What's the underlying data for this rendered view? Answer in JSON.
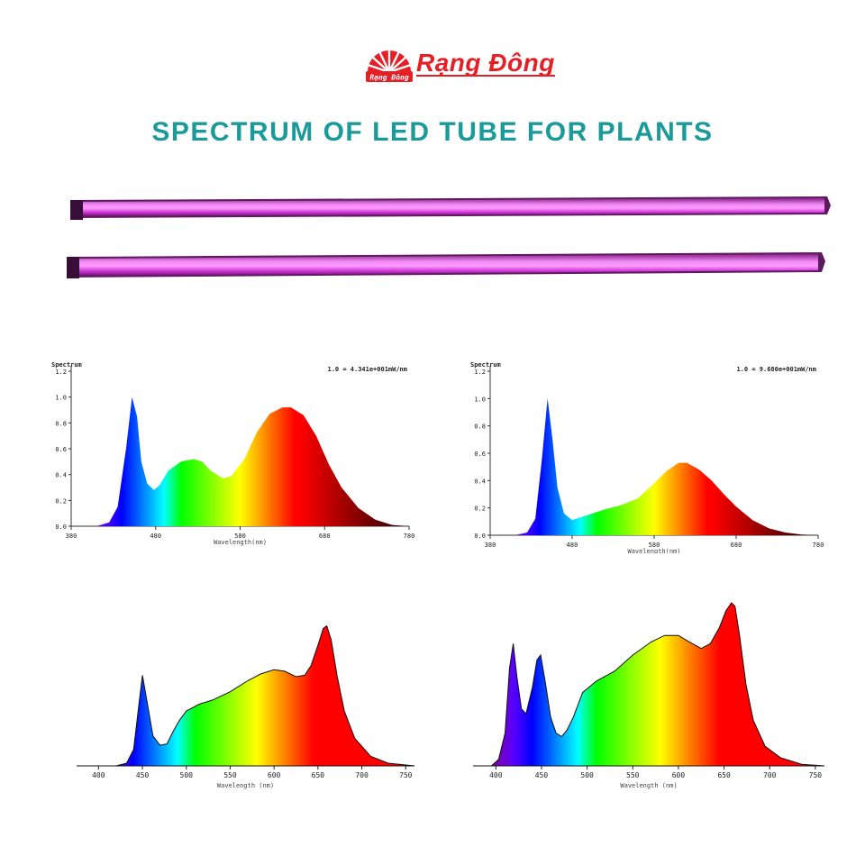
{
  "brand": {
    "name": "Rạng Đông",
    "logo_text": "Rạng Đông",
    "color": "#e41f26"
  },
  "headline": "SPECTRUM OF LED TUBE FOR PLANTS",
  "headline_color": "#1a9a9a",
  "tube_color": "#e040e8",
  "chart_data": [
    {
      "type": "area",
      "title": "Spectrum",
      "annotation": "1.0 = 4.341e+001mW/nm",
      "xlabel": "Wavelength(nm)",
      "x_ticks": [
        "380",
        "480",
        "580",
        "680",
        "780"
      ],
      "y_ticks": [
        "0.0",
        "0.2",
        "0.4",
        "0.6",
        "0.8",
        "1.0",
        "1.2"
      ],
      "xlim": [
        380,
        780
      ],
      "ylim": [
        0,
        1.2
      ],
      "x": [
        380,
        410,
        425,
        435,
        445,
        452,
        458,
        463,
        470,
        478,
        485,
        495,
        510,
        525,
        535,
        545,
        560,
        570,
        585,
        600,
        615,
        630,
        640,
        655,
        670,
        685,
        700,
        720,
        740,
        760,
        780
      ],
      "y": [
        0,
        0,
        0.03,
        0.15,
        0.6,
        1.0,
        0.85,
        0.5,
        0.33,
        0.28,
        0.32,
        0.43,
        0.5,
        0.52,
        0.5,
        0.43,
        0.37,
        0.39,
        0.52,
        0.73,
        0.87,
        0.92,
        0.92,
        0.86,
        0.7,
        0.48,
        0.3,
        0.14,
        0.05,
        0.01,
        0
      ]
    },
    {
      "type": "area",
      "title": "Spectrum",
      "annotation": "1.0 = 9.680e+001mW/nm",
      "xlabel": "Wavelength(nm)",
      "x_ticks": [
        "380",
        "480",
        "580",
        "680",
        "780"
      ],
      "y_ticks": [
        "0.0",
        "0.2",
        "0.4",
        "0.6",
        "0.8",
        "1.0",
        "1.2"
      ],
      "xlim": [
        380,
        780
      ],
      "ylim": [
        0,
        1.2
      ],
      "x": [
        380,
        410,
        425,
        435,
        443,
        450,
        456,
        462,
        470,
        480,
        490,
        505,
        520,
        540,
        560,
        580,
        595,
        610,
        620,
        635,
        650,
        665,
        680,
        700,
        720,
        740,
        760,
        780
      ],
      "y": [
        0,
        0,
        0.02,
        0.12,
        0.55,
        1.0,
        0.7,
        0.35,
        0.16,
        0.11,
        0.13,
        0.16,
        0.19,
        0.22,
        0.27,
        0.38,
        0.47,
        0.53,
        0.53,
        0.48,
        0.4,
        0.3,
        0.21,
        0.11,
        0.05,
        0.02,
        0.005,
        0
      ]
    },
    {
      "type": "area",
      "xlabel": "Wavelength (nm)",
      "x_ticks": [
        "400",
        "450",
        "500",
        "550",
        "600",
        "650",
        "700",
        "750"
      ],
      "xlim": [
        375,
        760
      ],
      "ylim": [
        0,
        1.05
      ],
      "x": [
        375,
        420,
        432,
        440,
        446,
        450,
        455,
        462,
        470,
        478,
        485,
        492,
        500,
        515,
        530,
        550,
        570,
        585,
        600,
        612,
        625,
        635,
        642,
        650,
        656,
        660,
        665,
        672,
        680,
        692,
        710,
        730,
        760
      ],
      "y": [
        0,
        0,
        0.02,
        0.12,
        0.45,
        0.66,
        0.48,
        0.22,
        0.15,
        0.16,
        0.25,
        0.33,
        0.4,
        0.45,
        0.48,
        0.54,
        0.62,
        0.67,
        0.7,
        0.69,
        0.65,
        0.66,
        0.73,
        0.88,
        1.0,
        1.02,
        0.92,
        0.65,
        0.4,
        0.2,
        0.07,
        0.02,
        0
      ]
    },
    {
      "type": "area",
      "xlabel": "Wavelength (nm)",
      "x_ticks": [
        "400",
        "450",
        "500",
        "550",
        "600",
        "650",
        "700",
        "750"
      ],
      "xlim": [
        375,
        760
      ],
      "ylim": [
        0,
        1.05
      ],
      "x": [
        375,
        395,
        403,
        410,
        415,
        419,
        423,
        428,
        433,
        440,
        445,
        449,
        454,
        460,
        466,
        472,
        478,
        485,
        495,
        510,
        530,
        550,
        570,
        585,
        600,
        612,
        625,
        635,
        645,
        652,
        658,
        662,
        667,
        674,
        682,
        695,
        712,
        735,
        760
      ],
      "y": [
        0,
        0,
        0.04,
        0.2,
        0.6,
        0.75,
        0.55,
        0.35,
        0.32,
        0.48,
        0.65,
        0.68,
        0.52,
        0.3,
        0.2,
        0.18,
        0.22,
        0.3,
        0.45,
        0.52,
        0.58,
        0.68,
        0.76,
        0.8,
        0.8,
        0.76,
        0.72,
        0.75,
        0.85,
        0.95,
        1.0,
        0.98,
        0.8,
        0.5,
        0.28,
        0.12,
        0.05,
        0.01,
        0
      ]
    }
  ]
}
